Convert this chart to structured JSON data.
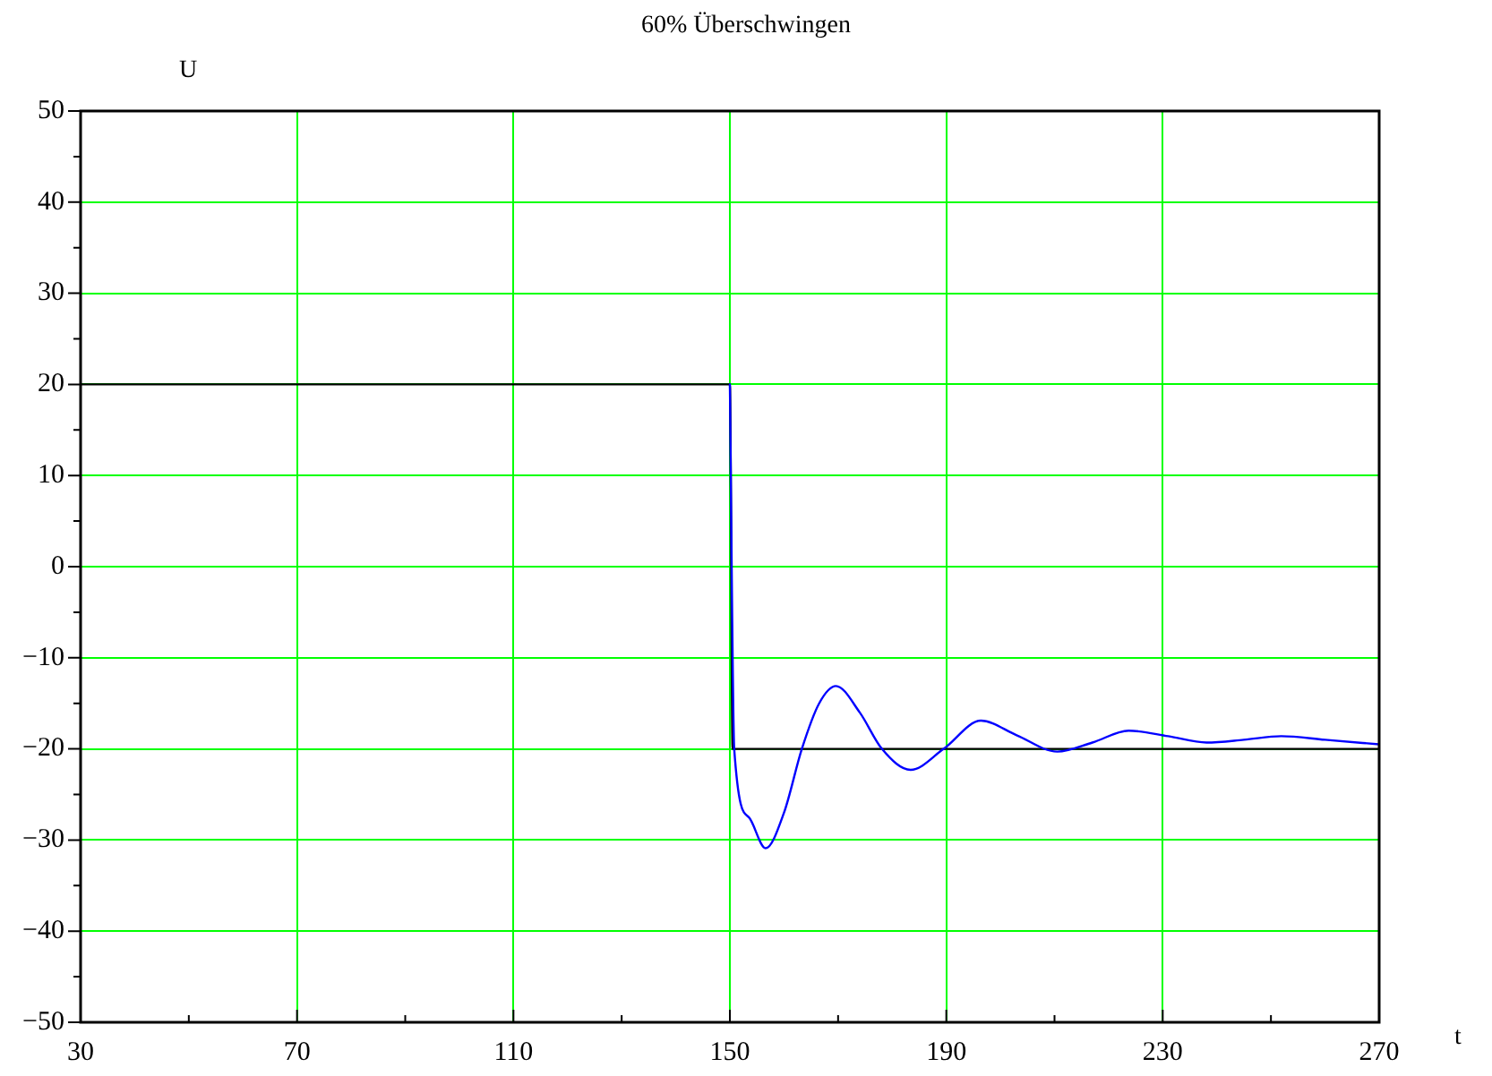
{
  "chart_data": {
    "type": "line",
    "title": "60% Überschwingen",
    "xlabel": "t",
    "ylabel": "U",
    "xlim": [
      30,
      270
    ],
    "xticks": [
      30,
      {
        "value": 50,
        "label": null
      },
      70,
      {
        "value": 90,
        "label": null
      },
      110,
      {
        "value": 130,
        "label": null
      },
      150,
      {
        "value": 170,
        "label": null
      },
      190,
      {
        "value": 210,
        "label": null
      },
      230,
      {
        "value": 250,
        "label": null
      },
      270
    ],
    "ylim": [
      -50,
      50
    ],
    "yticks": [
      -50,
      {
        "value": -45,
        "label": null
      },
      -40,
      {
        "value": -35,
        "label": null
      },
      -30,
      {
        "value": -25,
        "label": null
      },
      -20,
      {
        "value": -15,
        "label": null
      },
      -10,
      {
        "value": -5,
        "label": null
      },
      0,
      {
        "value": 5,
        "label": null
      },
      10,
      {
        "value": 15,
        "label": null
      },
      20,
      {
        "value": 25,
        "label": null
      },
      30,
      {
        "value": 35,
        "label": null
      },
      40,
      {
        "value": 45,
        "label": null
      },
      50
    ],
    "grid": true,
    "legend": false,
    "marker": "none",
    "line_style": "solid",
    "series": [
      {
        "color": "#0000ff",
        "x": [
          150,
          150.8,
          153.5,
          156.6,
          160,
          163.3,
          166.5,
          169.6,
          174,
          178.1,
          183.4,
          189.5,
          196.4,
          203,
          210.5,
          217,
          223.7,
          231,
          238.1,
          245,
          251.9,
          260,
          270
        ],
        "values": [
          20,
          -20,
          -27.5,
          -30.9,
          -27,
          -20,
          -15,
          -13.1,
          -16,
          -20,
          -22.3,
          -20,
          -16.9,
          -18.5,
          -20.3,
          -19.3,
          -18,
          -18.6,
          -19.3,
          -19,
          -18.6,
          -19,
          -19.5
        ]
      },
      {
        "color": "#000000",
        "x": [
          30,
          150,
          150.5,
          270
        ],
        "values": [
          20,
          20,
          -20,
          -20
        ]
      }
    ]
  }
}
